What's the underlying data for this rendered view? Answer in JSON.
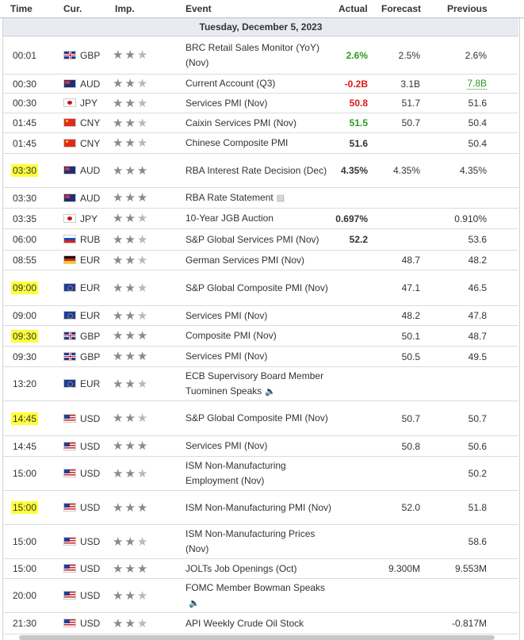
{
  "header": {
    "time": "Time",
    "cur": "Cur.",
    "imp": "Imp.",
    "event": "Event",
    "actual": "Actual",
    "forecast": "Forecast",
    "previous": "Previous"
  },
  "date_label": "Tuesday, December 5, 2023",
  "colors": {
    "highlight": "#ffff3b",
    "positive": "#2c9b1f",
    "negative": "#e0171b"
  },
  "rows": [
    {
      "time": "00:01",
      "hl": false,
      "flag": "gb",
      "cur": "GBP",
      "stars": 2,
      "event": "BRC Retail Sales Monitor (YoY) (Nov)",
      "actual": "2.6%",
      "actual_color": "green",
      "forecast": "2.5%",
      "previous": "2.6%",
      "prev_color": "",
      "icon": ""
    },
    {
      "time": "00:30",
      "hl": false,
      "flag": "au",
      "cur": "AUD",
      "stars": 2,
      "event": "Current Account (Q3)",
      "actual": "-0.2B",
      "actual_color": "red",
      "forecast": "3.1B",
      "previous": "7.8B",
      "prev_color": "green",
      "icon": ""
    },
    {
      "time": "00:30",
      "hl": false,
      "flag": "jp",
      "cur": "JPY",
      "stars": 2,
      "event": "Services PMI (Nov)",
      "actual": "50.8",
      "actual_color": "red",
      "forecast": "51.7",
      "previous": "51.6",
      "prev_color": "",
      "icon": ""
    },
    {
      "time": "01:45",
      "hl": false,
      "flag": "cn",
      "cur": "CNY",
      "stars": 2,
      "event": "Caixin Services PMI (Nov)",
      "actual": "51.5",
      "actual_color": "green",
      "forecast": "50.7",
      "previous": "50.4",
      "prev_color": "",
      "icon": ""
    },
    {
      "time": "01:45",
      "hl": false,
      "flag": "cn",
      "cur": "CNY",
      "stars": 2,
      "event": "Chinese Composite PMI",
      "actual": "51.6",
      "actual_color": "",
      "forecast": "",
      "previous": "50.4",
      "prev_color": "",
      "icon": ""
    },
    {
      "time": "03:30",
      "hl": true,
      "flag": "au",
      "cur": "AUD",
      "stars": 3,
      "event": "RBA Interest Rate Decision (Dec)",
      "actual": "4.35%",
      "actual_color": "",
      "forecast": "4.35%",
      "previous": "4.35%",
      "prev_color": "",
      "icon": ""
    },
    {
      "time": "03:30",
      "hl": false,
      "flag": "au",
      "cur": "AUD",
      "stars": 3,
      "event": "RBA Rate Statement",
      "actual": "",
      "actual_color": "",
      "forecast": "",
      "previous": "",
      "prev_color": "",
      "icon": "document"
    },
    {
      "time": "03:35",
      "hl": false,
      "flag": "jp",
      "cur": "JPY",
      "stars": 2,
      "event": "10-Year JGB Auction",
      "actual": "0.697%",
      "actual_color": "",
      "forecast": "",
      "previous": "0.910%",
      "prev_color": "",
      "icon": ""
    },
    {
      "time": "06:00",
      "hl": false,
      "flag": "ru",
      "cur": "RUB",
      "stars": 2,
      "event": "S&P Global Services PMI (Nov)",
      "actual": "52.2",
      "actual_color": "",
      "forecast": "",
      "previous": "53.6",
      "prev_color": "",
      "icon": ""
    },
    {
      "time": "08:55",
      "hl": false,
      "flag": "de",
      "cur": "EUR",
      "stars": 2,
      "event": "German Services PMI (Nov)",
      "actual": "",
      "actual_color": "",
      "forecast": "48.7",
      "previous": "48.2",
      "prev_color": "",
      "icon": ""
    },
    {
      "time": "09:00",
      "hl": true,
      "flag": "eu",
      "cur": "EUR",
      "stars": 2,
      "event": "S&P Global Composite PMI (Nov)",
      "actual": "",
      "actual_color": "",
      "forecast": "47.1",
      "previous": "46.5",
      "prev_color": "",
      "icon": ""
    },
    {
      "time": "09:00",
      "hl": false,
      "flag": "eu",
      "cur": "EUR",
      "stars": 2,
      "event": "Services PMI (Nov)",
      "actual": "",
      "actual_color": "",
      "forecast": "48.2",
      "previous": "47.8",
      "prev_color": "",
      "icon": ""
    },
    {
      "time": "09:30",
      "hl": true,
      "flag": "gb",
      "cur": "GBP",
      "stars": 3,
      "event": "Composite PMI (Nov)",
      "actual": "",
      "actual_color": "",
      "forecast": "50.1",
      "previous": "48.7",
      "prev_color": "",
      "icon": ""
    },
    {
      "time": "09:30",
      "hl": false,
      "flag": "gb",
      "cur": "GBP",
      "stars": 3,
      "event": "Services PMI (Nov)",
      "actual": "",
      "actual_color": "",
      "forecast": "50.5",
      "previous": "49.5",
      "prev_color": "",
      "icon": ""
    },
    {
      "time": "13:20",
      "hl": false,
      "flag": "eu",
      "cur": "EUR",
      "stars": 2,
      "event": "ECB Supervisory Board Member Tuominen Speaks",
      "actual": "",
      "actual_color": "",
      "forecast": "",
      "previous": "",
      "prev_color": "",
      "icon": "speaker"
    },
    {
      "time": "14:45",
      "hl": true,
      "flag": "us",
      "cur": "USD",
      "stars": 2,
      "event": "S&P Global Composite PMI (Nov)",
      "actual": "",
      "actual_color": "",
      "forecast": "50.7",
      "previous": "50.7",
      "prev_color": "",
      "icon": ""
    },
    {
      "time": "14:45",
      "hl": false,
      "flag": "us",
      "cur": "USD",
      "stars": 3,
      "event": "Services PMI (Nov)",
      "actual": "",
      "actual_color": "",
      "forecast": "50.8",
      "previous": "50.6",
      "prev_color": "",
      "icon": ""
    },
    {
      "time": "15:00",
      "hl": false,
      "flag": "us",
      "cur": "USD",
      "stars": 2,
      "event": "ISM Non-Manufacturing Employment (Nov)",
      "actual": "",
      "actual_color": "",
      "forecast": "",
      "previous": "50.2",
      "prev_color": "",
      "icon": ""
    },
    {
      "time": "15:00",
      "hl": true,
      "flag": "us",
      "cur": "USD",
      "stars": 3,
      "event": "ISM Non-Manufacturing PMI (Nov)",
      "actual": "",
      "actual_color": "",
      "forecast": "52.0",
      "previous": "51.8",
      "prev_color": "",
      "icon": ""
    },
    {
      "time": "15:00",
      "hl": false,
      "flag": "us",
      "cur": "USD",
      "stars": 2,
      "event": "ISM Non-Manufacturing Prices (Nov)",
      "actual": "",
      "actual_color": "",
      "forecast": "",
      "previous": "58.6",
      "prev_color": "",
      "icon": ""
    },
    {
      "time": "15:00",
      "hl": false,
      "flag": "us",
      "cur": "USD",
      "stars": 3,
      "event": "JOLTs Job Openings (Oct)",
      "actual": "",
      "actual_color": "",
      "forecast": "9.300M",
      "previous": "9.553M",
      "prev_color": "",
      "icon": ""
    },
    {
      "time": "20:00",
      "hl": false,
      "flag": "us",
      "cur": "USD",
      "stars": 2,
      "event": "FOMC Member Bowman Speaks",
      "actual": "",
      "actual_color": "",
      "forecast": "",
      "previous": "",
      "prev_color": "",
      "icon": "speaker"
    },
    {
      "time": "21:30",
      "hl": false,
      "flag": "us",
      "cur": "USD",
      "stars": 2,
      "event": "API Weekly Crude Oil Stock",
      "actual": "",
      "actual_color": "",
      "forecast": "",
      "previous": "-0.817M",
      "prev_color": "",
      "icon": ""
    }
  ]
}
